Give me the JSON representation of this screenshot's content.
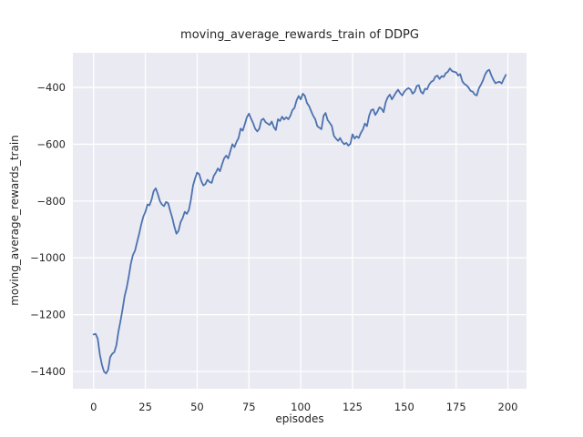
{
  "figure": {
    "title": "moving_average_rewards_train of DDPG",
    "xlabel": "episodes",
    "ylabel": "moving_average_rewards_train"
  },
  "chart_data": {
    "type": "line",
    "title": "moving_average_rewards_train of DDPG",
    "xlabel": "episodes",
    "ylabel": "moving_average_rewards_train",
    "x_start": 0,
    "x_step": 1,
    "values": [
      -1270,
      -1268,
      -1285,
      -1340,
      -1375,
      -1400,
      -1407,
      -1395,
      -1350,
      -1338,
      -1332,
      -1307,
      -1260,
      -1222,
      -1180,
      -1135,
      -1105,
      -1065,
      -1020,
      -990,
      -975,
      -945,
      -915,
      -883,
      -855,
      -838,
      -812,
      -815,
      -795,
      -765,
      -755,
      -775,
      -800,
      -812,
      -818,
      -803,
      -808,
      -835,
      -860,
      -890,
      -915,
      -905,
      -875,
      -860,
      -838,
      -845,
      -832,
      -795,
      -745,
      -720,
      -700,
      -705,
      -730,
      -745,
      -740,
      -725,
      -733,
      -736,
      -712,
      -700,
      -685,
      -695,
      -672,
      -650,
      -640,
      -650,
      -625,
      -600,
      -610,
      -592,
      -578,
      -545,
      -552,
      -530,
      -505,
      -492,
      -510,
      -525,
      -545,
      -555,
      -545,
      -515,
      -510,
      -522,
      -527,
      -532,
      -520,
      -540,
      -550,
      -512,
      -518,
      -503,
      -513,
      -505,
      -512,
      -500,
      -480,
      -472,
      -445,
      -430,
      -442,
      -422,
      -430,
      -455,
      -465,
      -483,
      -500,
      -512,
      -536,
      -542,
      -547,
      -500,
      -490,
      -515,
      -525,
      -535,
      -570,
      -580,
      -588,
      -578,
      -592,
      -600,
      -595,
      -605,
      -598,
      -565,
      -580,
      -572,
      -578,
      -560,
      -548,
      -527,
      -536,
      -500,
      -480,
      -477,
      -497,
      -485,
      -470,
      -475,
      -487,
      -452,
      -435,
      -425,
      -442,
      -430,
      -418,
      -408,
      -420,
      -428,
      -415,
      -407,
      -402,
      -407,
      -422,
      -415,
      -395,
      -392,
      -415,
      -422,
      -404,
      -407,
      -390,
      -380,
      -376,
      -362,
      -358,
      -370,
      -360,
      -363,
      -350,
      -345,
      -333,
      -342,
      -345,
      -347,
      -358,
      -353,
      -378,
      -388,
      -392,
      -400,
      -412,
      -415,
      -425,
      -428,
      -403,
      -390,
      -375,
      -355,
      -342,
      -338,
      -357,
      -373,
      -385,
      -382,
      -380,
      -386,
      -370,
      -356
    ],
    "xlim": [
      -10,
      209
    ],
    "ylim": [
      -1461,
      -278
    ],
    "xticks": [
      0,
      25,
      50,
      75,
      100,
      125,
      150,
      175,
      200
    ],
    "xtick_labels": [
      "0",
      "25",
      "50",
      "75",
      "100",
      "125",
      "150",
      "175",
      "200"
    ],
    "yticks": [
      -400,
      -600,
      -800,
      -1000,
      -1200,
      -1400
    ],
    "ytick_labels": [
      "−400",
      "−600",
      "−800",
      "−1000",
      "−1200",
      "−1400"
    ],
    "grid": true,
    "legend": "none",
    "colors": {
      "line": "#4c72b0",
      "plot_bg": "#eaeaf2",
      "grid": "#ffffff",
      "text": "#262626",
      "figure_bg": "#ffffff"
    }
  }
}
